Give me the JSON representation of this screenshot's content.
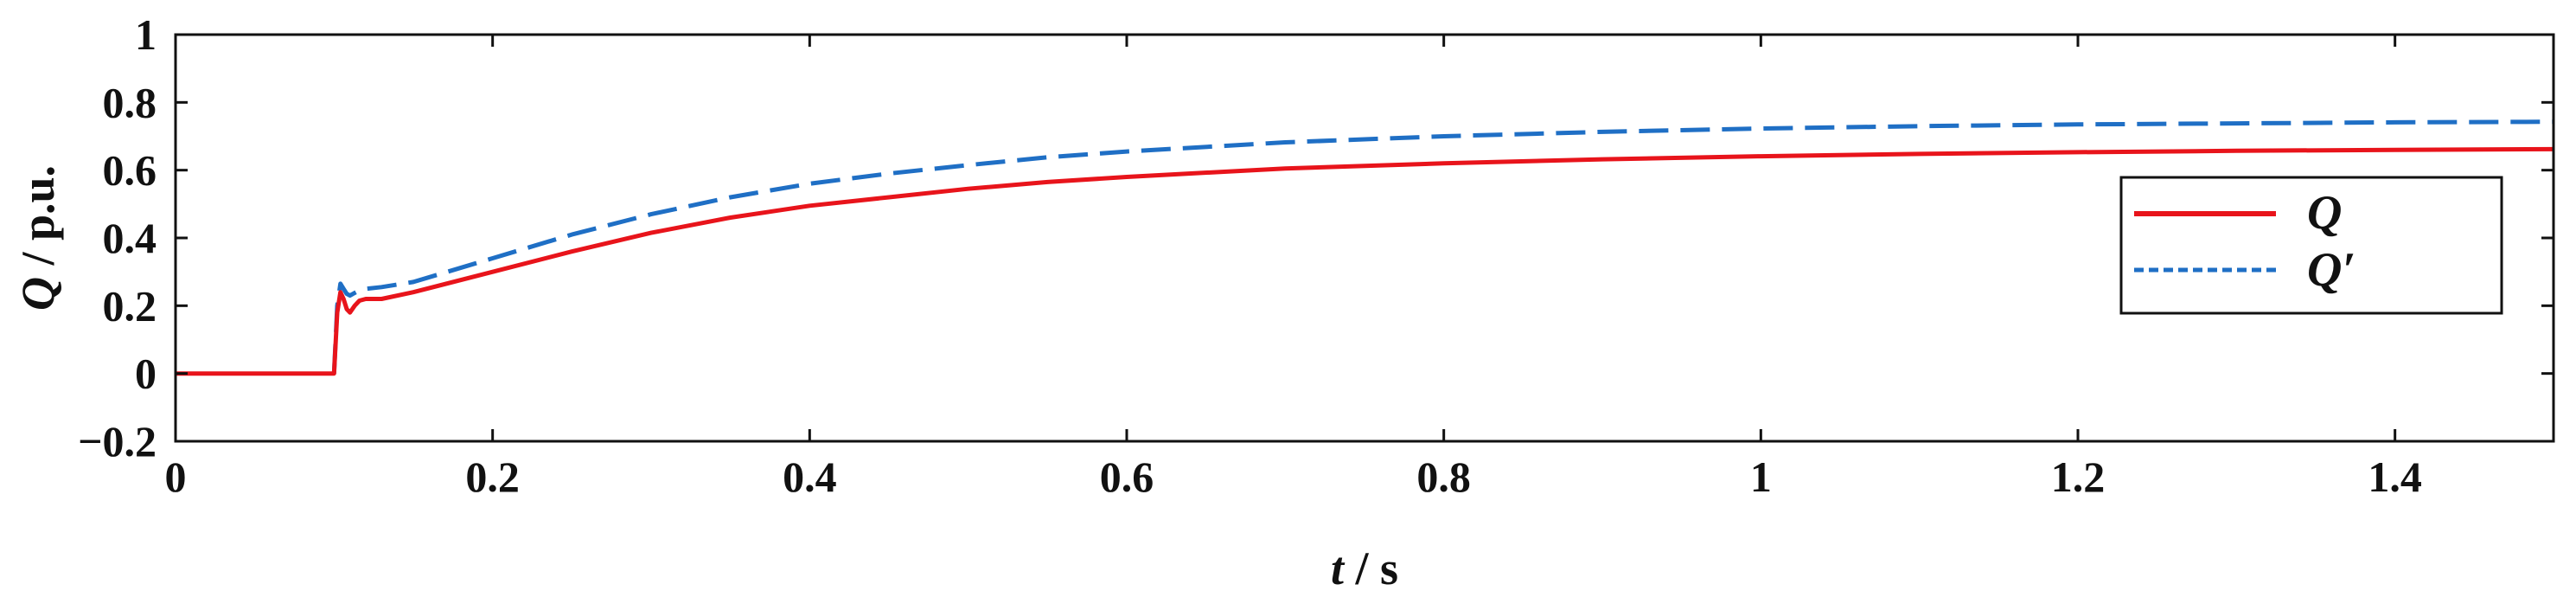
{
  "chart_data": {
    "type": "line",
    "xlabel": {
      "var": "t",
      "unit": " / s"
    },
    "ylabel": {
      "var": "Q",
      "unit": " / p.u."
    },
    "xlim": [
      0,
      1.5
    ],
    "ylim": [
      -0.2,
      1
    ],
    "xticks": [
      "0",
      "0.2",
      "0.4",
      "0.6",
      "0.8",
      "1",
      "1.2",
      "1.4"
    ],
    "yticks": [
      "−0.2",
      "0",
      "0.2",
      "0.4",
      "0.6",
      "0.8",
      "1"
    ],
    "grid": false,
    "legend_position": "right",
    "series": [
      {
        "name": "Q",
        "color": "#e8141b",
        "style": "solid",
        "x": [
          0,
          0.1,
          0.102,
          0.104,
          0.106,
          0.108,
          0.11,
          0.113,
          0.116,
          0.12,
          0.13,
          0.15,
          0.2,
          0.25,
          0.3,
          0.35,
          0.4,
          0.45,
          0.5,
          0.55,
          0.6,
          0.7,
          0.8,
          0.9,
          1.0,
          1.1,
          1.2,
          1.3,
          1.4,
          1.5
        ],
        "y": [
          0,
          0,
          0.18,
          0.24,
          0.22,
          0.19,
          0.18,
          0.2,
          0.215,
          0.22,
          0.22,
          0.24,
          0.3,
          0.36,
          0.415,
          0.46,
          0.495,
          0.52,
          0.545,
          0.565,
          0.58,
          0.605,
          0.62,
          0.632,
          0.641,
          0.648,
          0.653,
          0.657,
          0.66,
          0.662
        ]
      },
      {
        "name": "Q′",
        "color": "#1f6fc5",
        "style": "dashed",
        "x": [
          0.1,
          0.102,
          0.104,
          0.106,
          0.108,
          0.11,
          0.113,
          0.116,
          0.12,
          0.13,
          0.15,
          0.2,
          0.25,
          0.3,
          0.35,
          0.4,
          0.45,
          0.5,
          0.55,
          0.6,
          0.7,
          0.8,
          0.9,
          1.0,
          1.1,
          1.2,
          1.3,
          1.4,
          1.5
        ],
        "y": [
          0,
          0.2,
          0.265,
          0.25,
          0.235,
          0.23,
          0.238,
          0.245,
          0.25,
          0.255,
          0.27,
          0.34,
          0.41,
          0.47,
          0.52,
          0.56,
          0.59,
          0.615,
          0.638,
          0.655,
          0.682,
          0.7,
          0.713,
          0.723,
          0.73,
          0.735,
          0.738,
          0.741,
          0.743
        ]
      }
    ]
  }
}
